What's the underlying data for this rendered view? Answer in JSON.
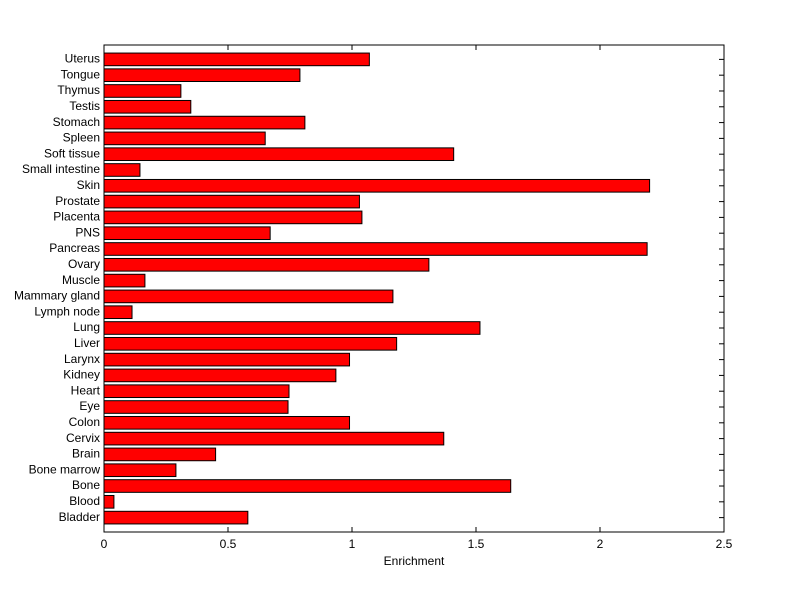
{
  "chart_data": {
    "type": "barh",
    "xlabel": "Enrichment",
    "categories": [
      "Bladder",
      "Blood",
      "Bone",
      "Bone marrow",
      "Brain",
      "Cervix",
      "Colon",
      "Eye",
      "Heart",
      "Kidney",
      "Larynx",
      "Liver",
      "Lung",
      "Lymph node",
      "Mammary gland",
      "Muscle",
      "Ovary",
      "Pancreas",
      "PNS",
      "Placenta",
      "Prostate",
      "Skin",
      "Small intestine",
      "Soft tissue",
      "Spleen",
      "Stomach",
      "Testis",
      "Thymus",
      "Tongue",
      "Uterus"
    ],
    "values": [
      0.58,
      0.04,
      1.64,
      0.29,
      0.45,
      1.37,
      0.99,
      0.742,
      0.746,
      0.935,
      0.99,
      1.18,
      1.516,
      0.113,
      1.165,
      0.165,
      1.31,
      2.19,
      0.67,
      1.04,
      1.03,
      2.2,
      0.145,
      1.41,
      0.65,
      0.81,
      0.35,
      0.31,
      0.79,
      1.07
    ],
    "color": "#ff0000",
    "xlim": [
      0,
      2.5
    ],
    "xticks": [
      0,
      0.5,
      1,
      1.5,
      2,
      2.5
    ]
  }
}
